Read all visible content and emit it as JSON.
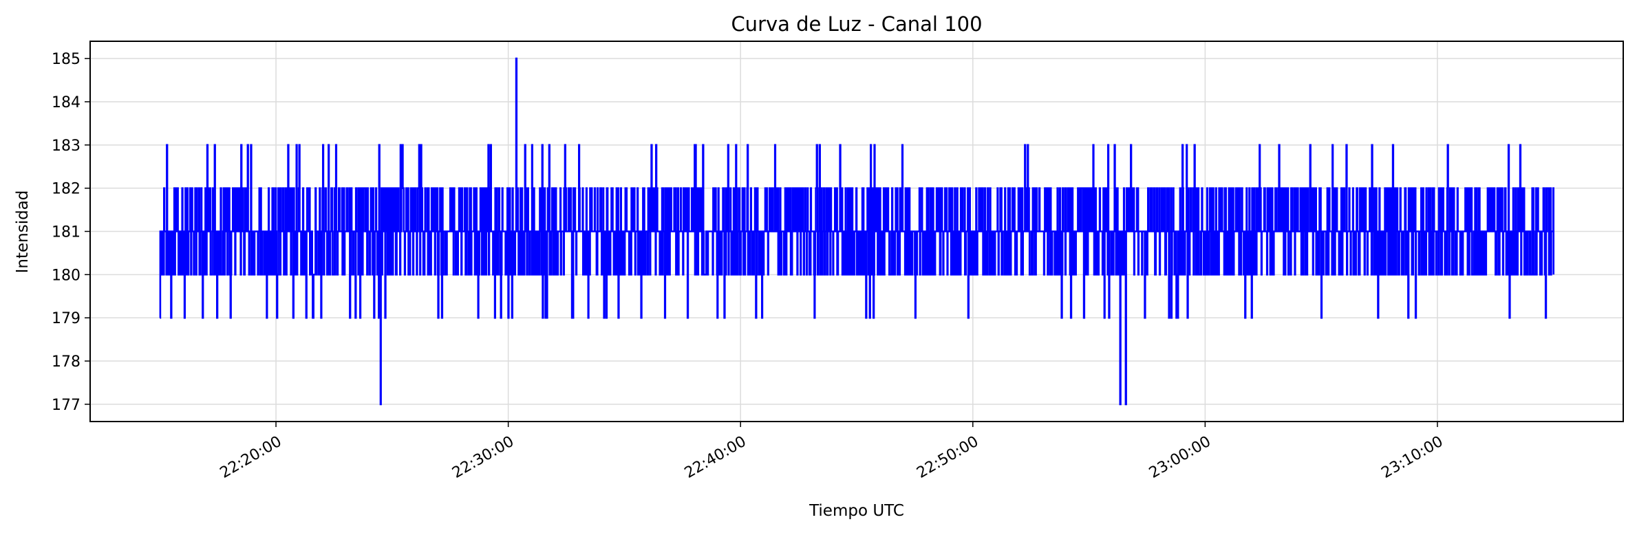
{
  "chart_data": {
    "type": "line",
    "title": "Curva de Luz - Canal 100",
    "xlabel": "Tiempo UTC",
    "ylabel": "Intensidad",
    "grid": true,
    "legend": "none",
    "line_color": "#0000ff",
    "x_range": [
      "22:12:00",
      "23:18:00"
    ],
    "ylim": [
      176.6,
      185.4
    ],
    "x_ticks": [
      "22:20:00",
      "22:30:00",
      "22:40:00",
      "22:50:00",
      "23:00:00",
      "23:10:00"
    ],
    "y_ticks": [
      177,
      178,
      179,
      180,
      181,
      182,
      183,
      184,
      185
    ],
    "series": [
      {
        "name": "",
        "x": [
          "22:15:00",
          "22:30:00",
          "22:45:00",
          "23:00:00",
          "23:15:00"
        ],
        "y": [
          179,
          182,
          181,
          180,
          180
        ],
        "y_range": [
          177,
          185
        ],
        "y_mean": 181,
        "maximum": {
          "x": "22:30:20",
          "y": 185
        },
        "minima": [
          {
            "x": "22:24:30",
            "y": 177
          },
          {
            "x": "22:56:20",
            "y": 177
          },
          {
            "x": "22:56:35",
            "y": 177
          }
        ]
      }
    ]
  }
}
